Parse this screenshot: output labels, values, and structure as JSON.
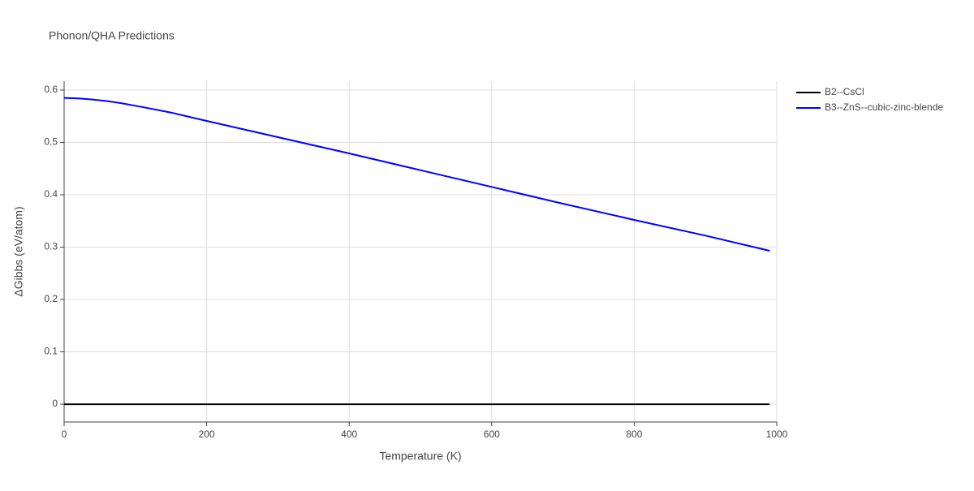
{
  "chart_data": {
    "type": "line",
    "title": "Phonon/QHA Predictions",
    "x_label": "Temperature (K)",
    "y_label": "ΔGibbs (eV/atom)",
    "x": [
      0,
      20,
      40,
      60,
      80,
      100,
      120,
      150,
      200,
      300,
      400,
      500,
      600,
      700,
      800,
      900,
      990
    ],
    "series": [
      {
        "name": "B2--CsCl",
        "color": "#000000",
        "values": [
          0,
          0,
          0,
          0,
          0,
          0,
          0,
          0,
          0,
          0,
          0,
          0,
          0,
          0,
          0,
          0,
          0
        ]
      },
      {
        "name": "B3--ZnS--cubic-zinc-blende",
        "color": "#0000ff",
        "values": [
          0.585,
          0.584,
          0.582,
          0.579,
          0.575,
          0.57,
          0.565,
          0.557,
          0.541,
          0.51,
          0.479,
          0.447,
          0.415,
          0.383,
          0.352,
          0.322,
          0.293
        ]
      }
    ],
    "xlim": [
      0,
      1000
    ],
    "xticks": [
      0,
      200,
      400,
      600,
      800,
      1000
    ],
    "ylim": [
      -0.034,
      0.617
    ],
    "yticks": [
      0,
      0.1,
      0.2,
      0.3,
      0.4,
      0.5,
      0.6
    ],
    "grid": true,
    "legend": "outside-right"
  }
}
